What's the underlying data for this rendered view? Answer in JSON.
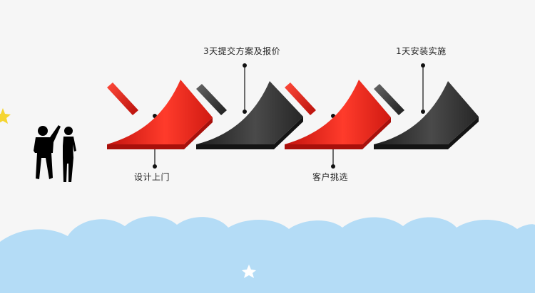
{
  "steps": [
    {
      "label": "设计上门",
      "color": "red"
    },
    {
      "label": "3天提交方案及报价",
      "color": "dark"
    },
    {
      "label": "客户挑选",
      "color": "red"
    },
    {
      "label": "1天安装实施",
      "color": "dark"
    }
  ],
  "colors": {
    "red": "#e0261d",
    "dark": "#2e2e2e",
    "cloud": "#b4dcf6",
    "star": "#f5d531"
  },
  "icons": [
    "business-people-silhouette-icon",
    "star-icon",
    "star-icon"
  ]
}
